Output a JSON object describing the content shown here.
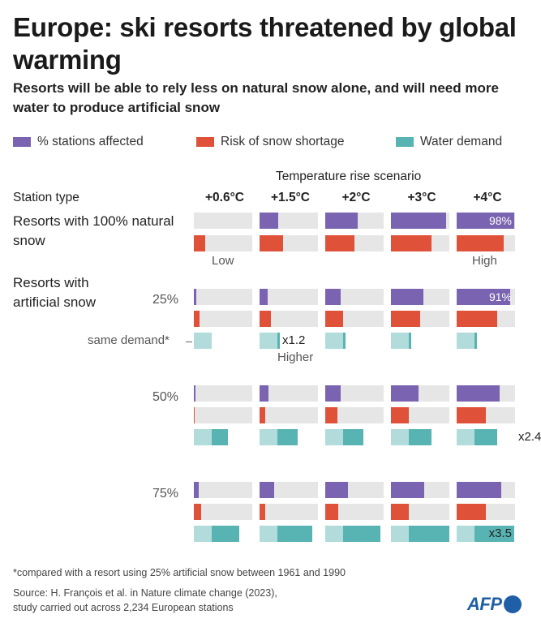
{
  "title": "Europe: ski resorts threatened by global warming",
  "subtitle": "Resorts will be able to rely less on natural snow alone, and will need more water to produce artificial snow",
  "legend": {
    "stations": {
      "label": "% stations affected",
      "color": "#7a63b0"
    },
    "risk": {
      "label": "Risk of snow shortage",
      "color": "#e0513a"
    },
    "water": {
      "label": "Water demand",
      "color": "#58b4b2"
    }
  },
  "chart_data": {
    "type": "bar",
    "title": "Temperature rise scenario",
    "station_type_label": "Station type",
    "categories": [
      "+0.6°C",
      "+1.5°C",
      "+2°C",
      "+3°C",
      "+4°C"
    ],
    "natural": {
      "label": "Resorts with 100% natural snow",
      "stations_affected": [
        0,
        32,
        55,
        95,
        98
      ],
      "risk": [
        20,
        40,
        50,
        70,
        80
      ],
      "risk_low_label": "Low",
      "risk_high_label": "High",
      "value_label": "98%"
    },
    "artificial": {
      "label": "Resorts with artificial snow",
      "reference_label": "same demand*",
      "reference_multiplier": "x1.2",
      "higher_label": "Higher",
      "groups": [
        {
          "label": "25%",
          "stations_affected": [
            4,
            14,
            26,
            55,
            91
          ],
          "risk": [
            10,
            20,
            30,
            50,
            70
          ],
          "water": [
            0,
            5,
            5,
            5,
            5
          ],
          "water_base": 30,
          "value_label": "91%"
        },
        {
          "label": "50%",
          "stations_affected": [
            3,
            15,
            27,
            47,
            73
          ],
          "risk": [
            2,
            10,
            21,
            30,
            50
          ],
          "water": [
            28,
            35,
            35,
            40,
            40
          ],
          "water_base": 30,
          "value_label": "x2.4"
        },
        {
          "label": "75%",
          "stations_affected": [
            8,
            25,
            39,
            57,
            76
          ],
          "risk": [
            12,
            10,
            22,
            30,
            50
          ],
          "water": [
            48,
            60,
            65,
            70,
            68
          ],
          "water_base": 30,
          "value_label": "x3.5"
        }
      ]
    }
  },
  "footnote": "*compared with a resort using 25% artificial snow between 1961 and 1990",
  "source_line1": "Source: H. François et al. in Nature climate change (2023),",
  "source_line2": "study carried out across 2,234 European stations",
  "logo": "AFP",
  "colors": {
    "track": "#e6e6e6",
    "water_base": "#b2dcdc"
  }
}
